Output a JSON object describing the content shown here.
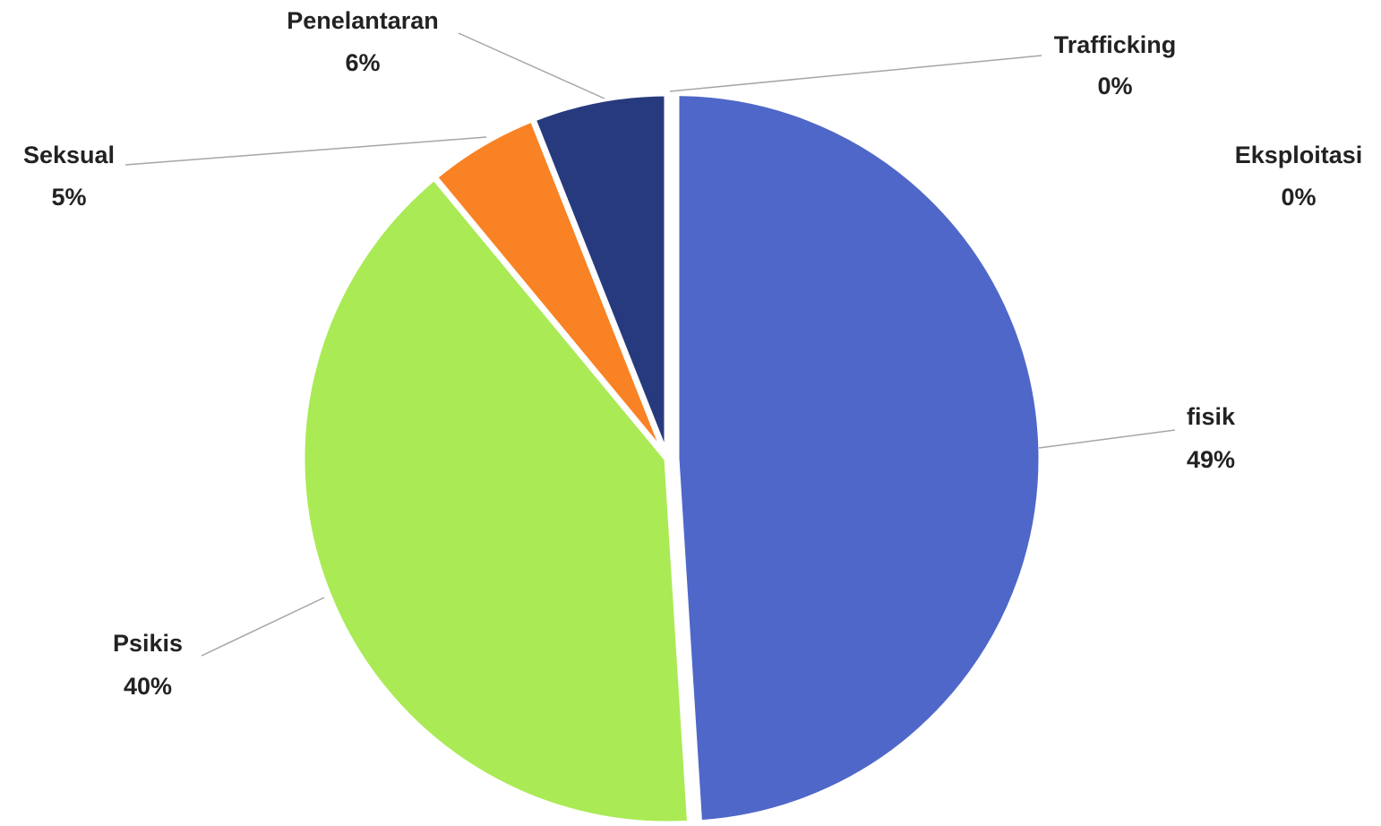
{
  "chart_data": {
    "type": "pie",
    "categories": [
      "fisik",
      "Psikis",
      "Seksual",
      "Penelantaran",
      "Trafficking",
      "Eksploitasi"
    ],
    "values": [
      49,
      40,
      5,
      6,
      0,
      0
    ],
    "value_labels": [
      "49%",
      "40%",
      "5%",
      "6%",
      "0%",
      "0%"
    ],
    "colors": [
      "#4f67c8",
      "#aaea55",
      "#f98224",
      "#283a7e",
      "#5b9bd5",
      "#70ad47"
    ]
  }
}
